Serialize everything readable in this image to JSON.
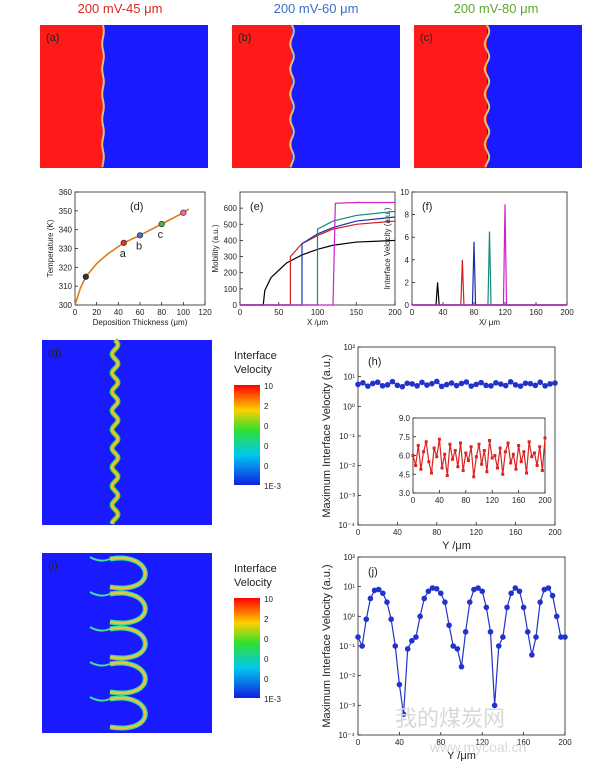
{
  "headers": [
    {
      "text": "200 mV-45 μm",
      "color": "#d42a1e"
    },
    {
      "text": "200 mV-60 μm",
      "color": "#3b6fc4"
    },
    {
      "text": "200 mV-80 μm",
      "color": "#5ea72f"
    }
  ],
  "maps": [
    {
      "label": "(a)"
    },
    {
      "label": "(b)"
    },
    {
      "label": "(c)"
    },
    {
      "label": "(g)"
    },
    {
      "label": "(i)"
    }
  ],
  "colorbars": [
    {
      "title": [
        "Interface",
        "Velocity"
      ],
      "ticks": [
        "10",
        "2",
        "0",
        "0",
        "0",
        "1E-3"
      ]
    },
    {
      "title": [
        "Interface",
        "Velocity"
      ],
      "ticks": [
        "10",
        "2",
        "0",
        "0",
        "0",
        "1E-3"
      ]
    }
  ],
  "watermark": {
    "name": "我的煤炭网",
    "url": "www.mycoal.cn"
  },
  "chart_data": [
    {
      "type": "line",
      "panel": "(d)",
      "xlabel": "Deposition Thickness (μm)",
      "ylabel": "Temperature (K)",
      "xlim": [
        0,
        120
      ],
      "xticks": [
        0,
        20,
        40,
        60,
        80,
        100,
        120
      ],
      "ylim": [
        300,
        360
      ],
      "yticks": [
        300,
        310,
        320,
        330,
        340,
        350,
        360
      ],
      "annotations": [
        "a",
        "b",
        "c"
      ],
      "series": [
        {
          "color": "#e07b1a",
          "x": [
            0,
            5,
            10,
            20,
            30,
            45,
            60,
            80,
            100,
            105
          ],
          "values": [
            300,
            309,
            315,
            322,
            327,
            333,
            337,
            343,
            349,
            351
          ]
        },
        {
          "color": "#222222",
          "marker": "circle",
          "line": false,
          "point_colors": [
            "#333333",
            "#e03030",
            "#4a6fd0",
            "#4caf50",
            "#e86ab0"
          ],
          "x": [
            10,
            45,
            60,
            80,
            100
          ],
          "values": [
            315,
            333,
            337,
            343,
            349
          ]
        }
      ]
    },
    {
      "type": "line",
      "panel": "(e)",
      "xlabel": "X /μm",
      "ylabel": "Mobility (a.u.)",
      "xlim": [
        0,
        200
      ],
      "xticks": [
        0,
        50,
        100,
        150,
        200
      ],
      "ylim": [
        0,
        700
      ],
      "yticks": [
        0,
        100,
        200,
        300,
        400,
        500,
        600
      ],
      "series": [
        {
          "color": "#000000",
          "x": [
            0,
            30,
            32,
            40,
            60,
            80,
            100,
            120,
            150,
            200
          ],
          "values": [
            0,
            0,
            90,
            170,
            260,
            310,
            345,
            370,
            390,
            400
          ]
        },
        {
          "color": "#d42020",
          "x": [
            0,
            65,
            65,
            80,
            100,
            120,
            150,
            200
          ],
          "values": [
            0,
            0,
            300,
            380,
            430,
            470,
            500,
            520
          ]
        },
        {
          "color": "#1c2fa8",
          "x": [
            0,
            80,
            80,
            100,
            120,
            150,
            200
          ],
          "values": [
            0,
            0,
            380,
            440,
            480,
            520,
            545
          ]
        },
        {
          "color": "#128a7a",
          "x": [
            0,
            100,
            100,
            120,
            150,
            200
          ],
          "values": [
            0,
            0,
            470,
            520,
            555,
            580
          ]
        },
        {
          "color": "#d020c8",
          "x": [
            0,
            120,
            123,
            150,
            200
          ],
          "values": [
            0,
            0,
            630,
            635,
            635
          ]
        }
      ]
    },
    {
      "type": "line",
      "panel": "(f)",
      "xlabel": "X/ μm",
      "ylabel": "Interface Velocity (a.u.)",
      "xlim": [
        0,
        200
      ],
      "xticks": [
        0,
        40,
        80,
        120,
        160,
        200
      ],
      "ylim": [
        0,
        10
      ],
      "yticks": [
        0,
        2,
        4,
        6,
        8,
        10
      ],
      "series": [
        {
          "color": "#000000",
          "x": [
            0,
            31,
            33,
            35,
            200
          ],
          "values": [
            0,
            0,
            2,
            0,
            0
          ]
        },
        {
          "color": "#d42020",
          "x": [
            0,
            63,
            65,
            67,
            200
          ],
          "values": [
            0,
            0,
            4,
            0,
            0
          ]
        },
        {
          "color": "#1c2fa8",
          "x": [
            0,
            78,
            80,
            82,
            200
          ],
          "values": [
            0,
            0,
            5.6,
            0,
            0
          ]
        },
        {
          "color": "#128a7a",
          "x": [
            0,
            98,
            100,
            102,
            200
          ],
          "values": [
            0,
            0,
            6.5,
            0,
            0
          ]
        },
        {
          "color": "#d020c8",
          "x": [
            0,
            118,
            120,
            122,
            200
          ],
          "values": [
            0,
            0,
            8.9,
            0,
            0
          ]
        }
      ]
    },
    {
      "type": "line",
      "panel": "(h)",
      "xlabel": "Y /μm",
      "ylabel": "Maximum Interface Velocity (a.u.)",
      "ylog": true,
      "xlim": [
        0,
        200
      ],
      "xticks": [
        0,
        40,
        80,
        120,
        160,
        200
      ],
      "ylim": [
        0.0001,
        100
      ],
      "yticks": [
        {
          "value": 0.0001,
          "label": "10⁻⁴"
        },
        {
          "value": 0.001,
          "label": "10⁻³"
        },
        {
          "value": 0.01,
          "label": "10⁻²"
        },
        {
          "value": 0.1,
          "label": "10⁻¹"
        },
        {
          "value": 1,
          "label": "10⁰"
        },
        {
          "value": 10,
          "label": "10¹"
        },
        {
          "value": 100,
          "label": "10²"
        }
      ],
      "series": [
        {
          "color": "#2233cc",
          "marker": "circle",
          "x": [
            0,
            5,
            10,
            15,
            20,
            25,
            30,
            35,
            40,
            45,
            50,
            55,
            60,
            65,
            70,
            75,
            80,
            85,
            90,
            95,
            100,
            105,
            110,
            115,
            120,
            125,
            130,
            135,
            140,
            145,
            150,
            155,
            160,
            165,
            170,
            175,
            180,
            185,
            190,
            195,
            200
          ],
          "values": [
            5.5,
            6.2,
            4.8,
            5.9,
            6.5,
            4.9,
            5.3,
            6.8,
            5.1,
            4.6,
            6.0,
            5.7,
            4.9,
            6.4,
            5.2,
            5.8,
            6.9,
            4.7,
            5.4,
            6.1,
            5.0,
            5.9,
            6.6,
            4.8,
            5.5,
            6.3,
            5.1,
            4.9,
            6.2,
            5.6,
            5.0,
            6.7,
            5.3,
            4.8,
            6.0,
            5.8,
            5.1,
            6.5,
            4.9,
            5.7,
            6.1
          ]
        }
      ]
    },
    {
      "type": "line",
      "xlim": [
        0,
        200
      ],
      "xticks": [
        0,
        40,
        80,
        120,
        160,
        200
      ],
      "ylim": [
        3,
        9
      ],
      "yticks": [
        {
          "value": 3,
          "label": "3.0"
        },
        {
          "value": 4.5,
          "label": "4.5"
        },
        {
          "value": 6,
          "label": "6.0"
        },
        {
          "value": 7.5,
          "label": "7.5"
        },
        {
          "value": 9,
          "label": "9.0"
        }
      ],
      "series": [
        {
          "color": "#dd2222",
          "marker": "square",
          "x": [
            0,
            4,
            8,
            12,
            16,
            20,
            24,
            28,
            32,
            36,
            40,
            44,
            48,
            52,
            56,
            60,
            64,
            68,
            72,
            76,
            80,
            84,
            88,
            92,
            96,
            100,
            104,
            108,
            112,
            116,
            120,
            124,
            128,
            132,
            136,
            140,
            144,
            148,
            152,
            156,
            160,
            164,
            168,
            172,
            176,
            180,
            184,
            188,
            192,
            196,
            200
          ],
          "values": [
            6.0,
            5.2,
            6.8,
            4.9,
            6.3,
            7.1,
            5.5,
            4.6,
            6.6,
            5.9,
            7.3,
            5.0,
            6.1,
            4.4,
            6.9,
            5.7,
            6.4,
            5.1,
            7.0,
            4.8,
            6.2,
            5.6,
            6.7,
            4.3,
            5.9,
            6.9,
            5.3,
            6.4,
            4.7,
            7.2,
            5.8,
            6.0,
            5.0,
            6.6,
            4.5,
            6.3,
            7.0,
            5.4,
            6.1,
            4.9,
            6.8,
            5.5,
            6.3,
            4.6,
            7.1,
            5.9,
            6.2,
            5.2,
            6.7,
            4.8,
            7.4
          ]
        }
      ]
    },
    {
      "type": "line",
      "panel": "(j)",
      "xlabel": "Y /μm",
      "ylabel": "Maximum Interface Velocity (a.u.)",
      "ylog": true,
      "xlim": [
        0,
        200
      ],
      "xticks": [
        0,
        40,
        80,
        120,
        160,
        200
      ],
      "ylim": [
        0.0001,
        100
      ],
      "yticks": [
        {
          "value": 0.0001,
          "label": "10⁻⁴"
        },
        {
          "value": 0.001,
          "label": "10⁻³"
        },
        {
          "value": 0.01,
          "label": "10⁻²"
        },
        {
          "value": 0.1,
          "label": "10⁻¹"
        },
        {
          "value": 1,
          "label": "10⁰"
        },
        {
          "value": 10,
          "label": "10¹"
        },
        {
          "value": 100,
          "label": "10²"
        }
      ],
      "series": [
        {
          "color": "#2233cc",
          "marker": "circle",
          "x": [
            0,
            4,
            8,
            12,
            16,
            20,
            24,
            28,
            32,
            36,
            40,
            44,
            48,
            52,
            56,
            60,
            64,
            68,
            72,
            76,
            80,
            84,
            88,
            92,
            96,
            100,
            104,
            108,
            112,
            116,
            120,
            124,
            128,
            132,
            136,
            140,
            144,
            148,
            152,
            156,
            160,
            164,
            168,
            172,
            176,
            180,
            184,
            188,
            192,
            196,
            200
          ],
          "values": [
            0.2,
            0.1,
            0.8,
            4,
            7.5,
            8,
            6,
            3,
            0.8,
            0.1,
            0.005,
            0.0005,
            0.08,
            0.15,
            0.2,
            1,
            4,
            7,
            9,
            8.5,
            6,
            3,
            0.5,
            0.1,
            0.08,
            0.02,
            0.3,
            3,
            8,
            9,
            7,
            2,
            0.3,
            0.001,
            0.1,
            0.2,
            2,
            6,
            9,
            7,
            2,
            0.3,
            0.05,
            0.2,
            3,
            8,
            9,
            5,
            1,
            0.2,
            0.2
          ]
        }
      ]
    }
  ]
}
